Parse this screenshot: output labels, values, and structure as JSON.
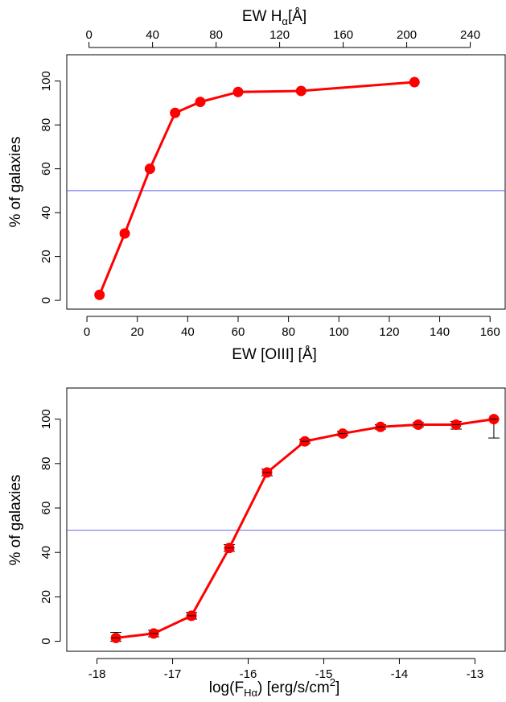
{
  "colors": {
    "series": "#ff0000",
    "reference_line": "#6666ee",
    "errorbar": "#000000",
    "axes": "#000000"
  },
  "chart_data": [
    {
      "type": "line",
      "xlabel": "EW [OIII] [Å]",
      "ylabel": "% of galaxies",
      "xlim": [
        -8,
        166
      ],
      "ylim": [
        -4,
        112
      ],
      "x_ticks": [
        0,
        20,
        40,
        60,
        80,
        100,
        120,
        140,
        160
      ],
      "y_ticks": [
        0,
        20,
        40,
        60,
        80,
        100
      ],
      "top_axis": {
        "label_main": "EW H",
        "label_sub": "α",
        "label_unit": "[Å]",
        "xlim": [
          -14,
          262
        ],
        "ticks": [
          0,
          40,
          80,
          120,
          160,
          200,
          240
        ]
      },
      "reference_line_y": 50,
      "series": [
        {
          "x": [
            5,
            15,
            25,
            35,
            45,
            60,
            85,
            130
          ],
          "y": [
            2.5,
            30.5,
            60,
            85.5,
            90.5,
            95,
            95.5,
            99.5
          ]
        }
      ],
      "errorbars": false
    },
    {
      "type": "line",
      "xlabel_main": "log(F",
      "xlabel_sub": "Hα",
      "xlabel_mid": ") [erg/s/cm",
      "xlabel_sup": "2",
      "xlabel_end": "]",
      "ylabel": "% of galaxies",
      "xlim": [
        -18.4,
        -12.6
      ],
      "ylim": [
        -4.5,
        114
      ],
      "x_ticks": [
        -18,
        -17,
        -16,
        -15,
        -14,
        -13
      ],
      "y_ticks": [
        0,
        20,
        40,
        60,
        80,
        100
      ],
      "reference_line_y": 50,
      "series": [
        {
          "x": [
            -17.75,
            -17.25,
            -16.75,
            -16.25,
            -15.75,
            -15.25,
            -14.75,
            -14.25,
            -13.75,
            -13.25,
            -12.75
          ],
          "y": [
            1.5,
            3.5,
            11.5,
            42,
            76,
            90,
            93.5,
            96.5,
            97.5,
            97.5,
            100
          ],
          "err_low": [
            1.5,
            1.5,
            1.5,
            1.5,
            1.5,
            1.0,
            1.0,
            1.0,
            1.0,
            2.0,
            8.5
          ],
          "err_high": [
            2.5,
            1.5,
            1.5,
            1.5,
            1.5,
            1.0,
            1.0,
            1.0,
            1.0,
            1.5,
            0.0
          ]
        }
      ],
      "errorbars": true
    }
  ]
}
